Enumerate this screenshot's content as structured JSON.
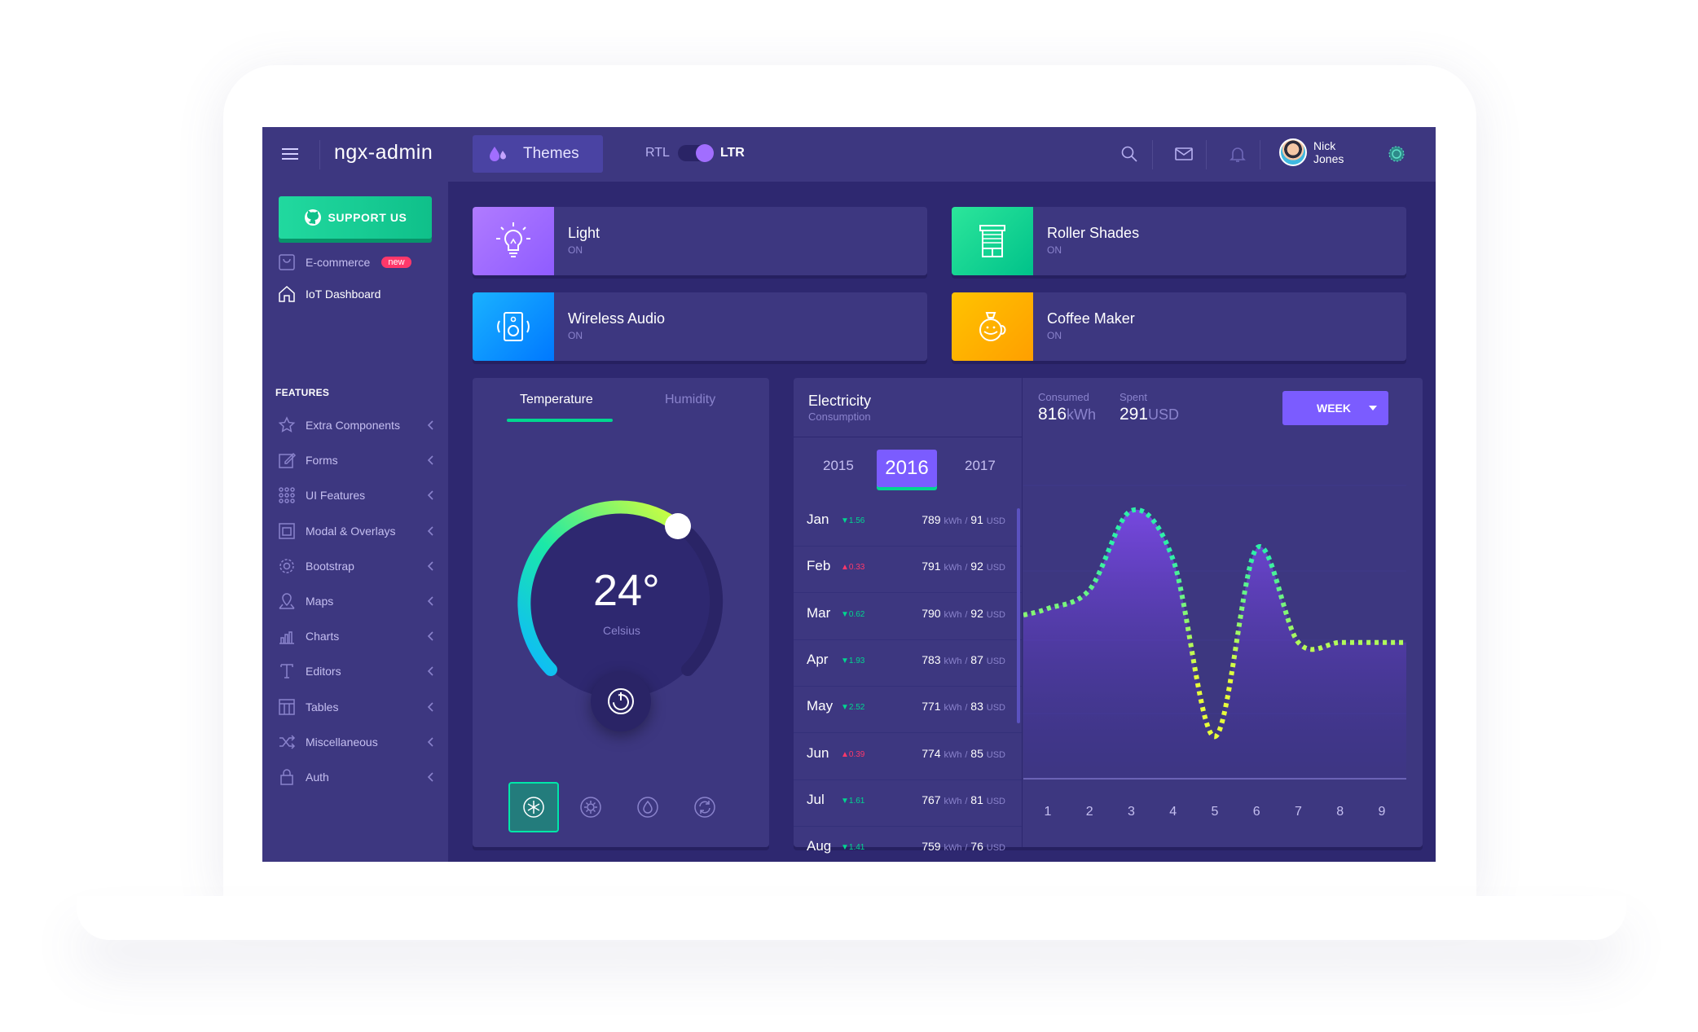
{
  "header": {
    "logo": "ngx-admin",
    "themes_label": "Themes",
    "rtl_label": "RTL",
    "ltr_label": "LTR",
    "user_first": "Nick",
    "user_last": "Jones"
  },
  "sidebar": {
    "support_label": "SUPPORT US",
    "ecommerce_label": "E-commerce",
    "new_badge": "new",
    "iot_label": "IoT Dashboard",
    "features_title": "FEATURES",
    "items": [
      {
        "label": "Extra Components",
        "icon": "star-icon"
      },
      {
        "label": "Forms",
        "icon": "edit-icon"
      },
      {
        "label": "UI Features",
        "icon": "grid-icon"
      },
      {
        "label": "Modal & Overlays",
        "icon": "browser-icon"
      },
      {
        "label": "Bootstrap",
        "icon": "gear-icon"
      },
      {
        "label": "Maps",
        "icon": "map-icon"
      },
      {
        "label": "Charts",
        "icon": "bar-chart-icon"
      },
      {
        "label": "Editors",
        "icon": "text-icon"
      },
      {
        "label": "Tables",
        "icon": "table-icon"
      },
      {
        "label": "Miscellaneous",
        "icon": "shuffle-icon"
      },
      {
        "label": "Auth",
        "icon": "lock-icon"
      }
    ]
  },
  "devices": [
    {
      "title": "Light",
      "status": "ON",
      "icon": "lightbulb-icon",
      "color": "#a16eff"
    },
    {
      "title": "Roller Shades",
      "status": "ON",
      "icon": "roller-shades-icon",
      "color": "#00d68f"
    },
    {
      "title": "Wireless Audio",
      "status": "ON",
      "icon": "speaker-icon",
      "color": "#0095ff"
    },
    {
      "title": "Coffee Maker",
      "status": "ON",
      "icon": "coffee-maker-icon",
      "color": "#ffaa00"
    }
  ],
  "temperature": {
    "tab_temperature": "Temperature",
    "tab_humidity": "Humidity",
    "value": "24°",
    "unit": "Celsius",
    "modes": [
      "snowflake-icon",
      "sun-icon",
      "flame-icon",
      "refresh-icon"
    ]
  },
  "electricity": {
    "title": "Electricity",
    "subtitle": "Consumption",
    "years": [
      "2015",
      "2016",
      "2017"
    ],
    "selected_year": "2016",
    "months": [
      {
        "month": "Jan",
        "delta": "1.56",
        "dir": "down",
        "kwh": "789",
        "usd": "91"
      },
      {
        "month": "Feb",
        "delta": "0.33",
        "dir": "up",
        "kwh": "791",
        "usd": "92"
      },
      {
        "month": "Mar",
        "delta": "0.62",
        "dir": "down",
        "kwh": "790",
        "usd": "92"
      },
      {
        "month": "Apr",
        "delta": "1.93",
        "dir": "down",
        "kwh": "783",
        "usd": "87"
      },
      {
        "month": "May",
        "delta": "2.52",
        "dir": "down",
        "kwh": "771",
        "usd": "83"
      },
      {
        "month": "Jun",
        "delta": "0.39",
        "dir": "up",
        "kwh": "774",
        "usd": "85"
      },
      {
        "month": "Jul",
        "delta": "1.61",
        "dir": "down",
        "kwh": "767",
        "usd": "81"
      },
      {
        "month": "Aug",
        "delta": "1.41",
        "dir": "down",
        "kwh": "759",
        "usd": "76"
      }
    ],
    "kwh_unit": "kWh",
    "usd_unit": "USD",
    "consumed_label": "Consumed",
    "consumed_value": "816",
    "spent_label": "Spent",
    "spent_value": "291",
    "period": "WEEK"
  },
  "chart_data": {
    "type": "area",
    "x": [
      1,
      2,
      3,
      4,
      5,
      6,
      7,
      8,
      9
    ],
    "categories": [
      "1",
      "2",
      "3",
      "4",
      "5",
      "6",
      "7",
      "8",
      "9"
    ],
    "series": [
      {
        "values": [
          2.3,
          2.8,
          4.9,
          3.6,
          -1.1,
          3.9,
          1.4,
          1.4,
          1.4
        ]
      }
    ],
    "ylim": [
      -2,
      6
    ],
    "grid": true
  }
}
